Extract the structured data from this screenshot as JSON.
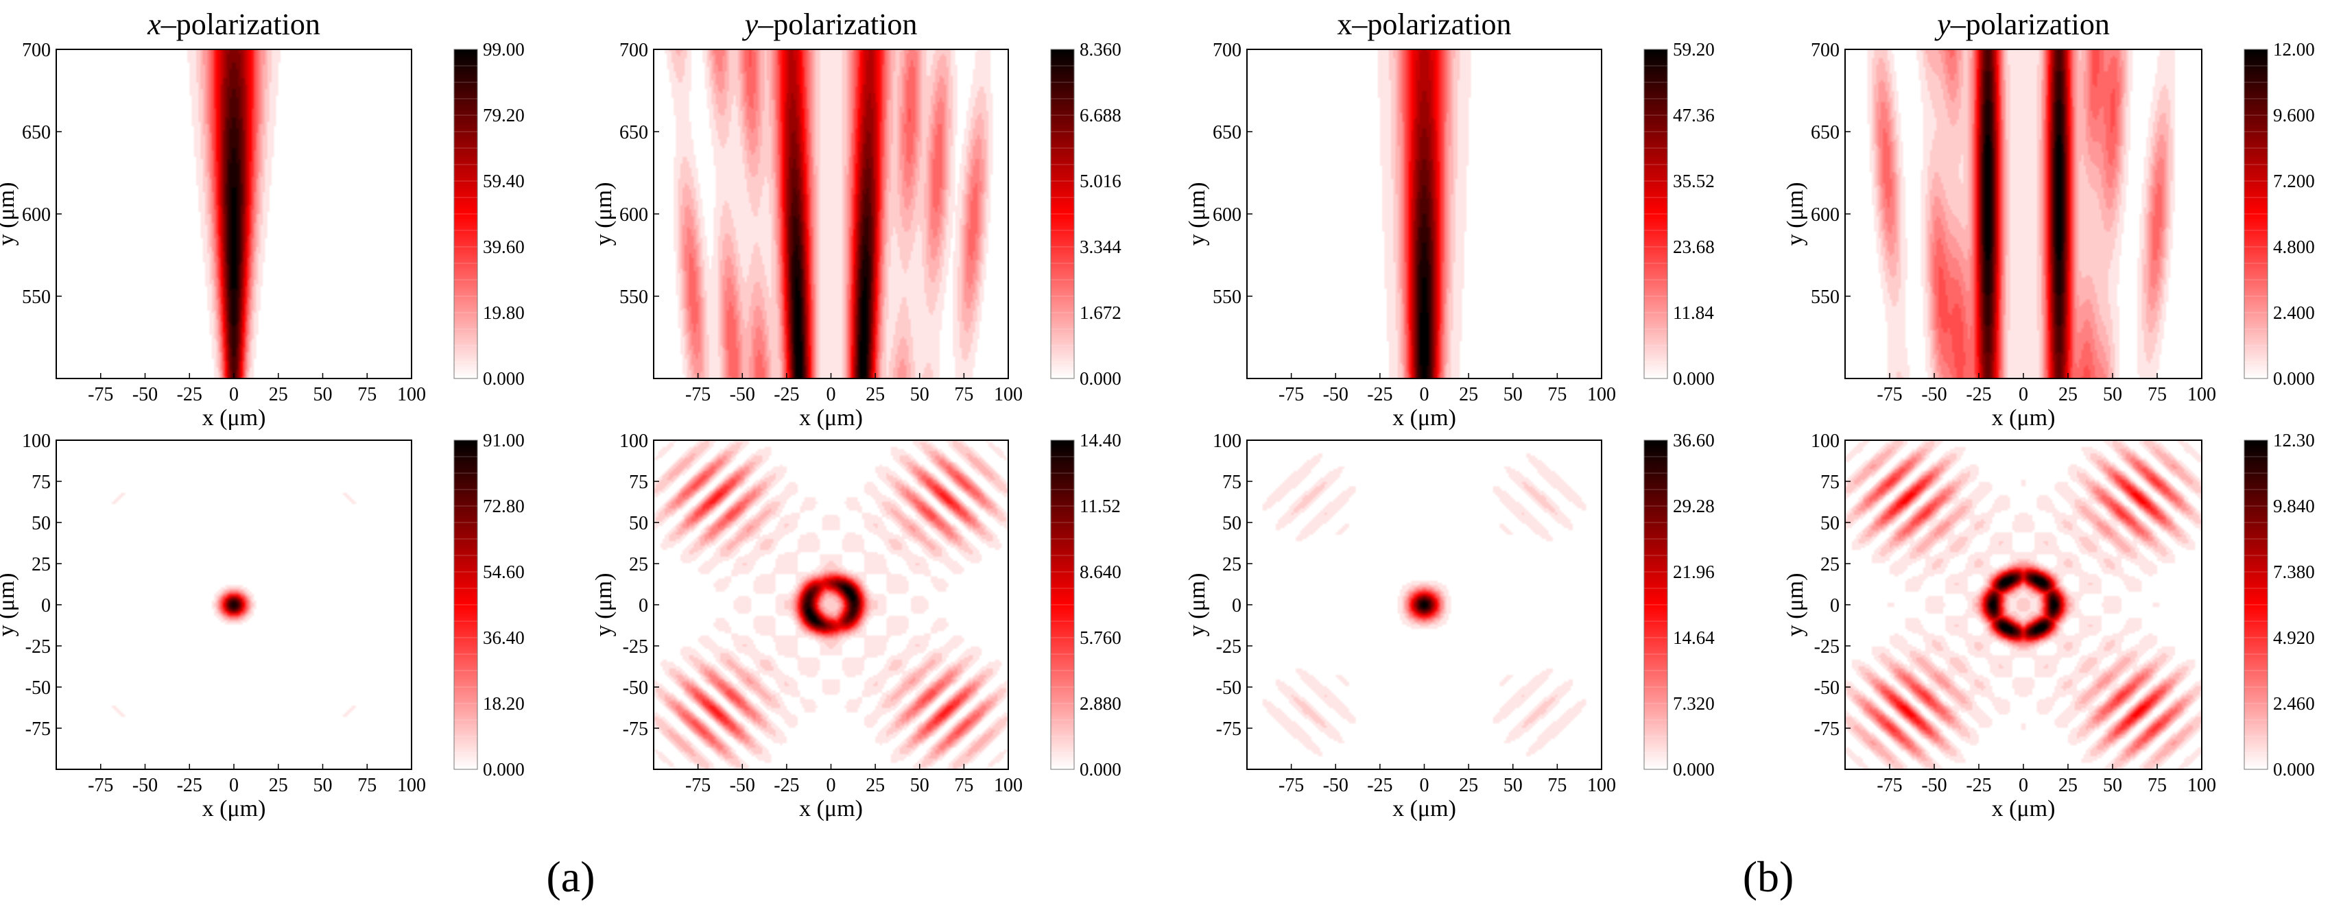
{
  "figure": {
    "panel_labels": [
      "(a)",
      "(b)"
    ]
  },
  "colormap": {
    "stops": [
      "#ffffff",
      "#ff0000",
      "#000000"
    ]
  },
  "chart_data": [
    {
      "id": "a-top-x",
      "type": "heatmap",
      "group": "(a)",
      "title_italic": "x",
      "title_rest": "–polarization",
      "xlabel": "x (μm)",
      "ylabel": "y (μm)",
      "xlim": [
        -100,
        100
      ],
      "ylim": [
        500,
        700
      ],
      "xticks": [
        "-75",
        "-50",
        "-25",
        "0",
        "25",
        "50",
        "75",
        "100"
      ],
      "yticks": [
        "550",
        "600",
        "650",
        "700"
      ],
      "colorbar": {
        "min": 0,
        "max": 99.0,
        "ticks": [
          "0.000",
          "19.80",
          "39.60",
          "59.40",
          "79.20",
          "99.00"
        ]
      },
      "field": {
        "kind": "beam",
        "centers": [
          0
        ],
        "sigma": 4,
        "sigmaTop": 10,
        "peakY": 585,
        "side": [],
        "halo": 0.03
      }
    },
    {
      "id": "a-top-y",
      "type": "heatmap",
      "group": "(a)",
      "title_italic": "y",
      "title_rest": "–polarization",
      "xlabel": "x (μm)",
      "ylabel": "y (μm)",
      "xlim": [
        -100,
        100
      ],
      "ylim": [
        500,
        700
      ],
      "xticks": [
        "-75",
        "-50",
        "-25",
        "0",
        "25",
        "50",
        "75",
        "100"
      ],
      "yticks": [
        "550",
        "600",
        "650",
        "700"
      ],
      "colorbar": {
        "min": 0,
        "max": 8.36,
        "ticks": [
          "0.000",
          "1.672",
          "3.344",
          "5.016",
          "6.688",
          "8.360"
        ]
      },
      "field": {
        "kind": "beam",
        "centers": [
          -18,
          18
        ],
        "sigma": 5,
        "sigmaTop": 7,
        "spread": 0.12,
        "peakY": 520,
        "side": [
          -75,
          -55,
          -40,
          40,
          55,
          75
        ],
        "halo": 0.05
      }
    },
    {
      "id": "b-top-x",
      "type": "heatmap",
      "group": "(b)",
      "title_italic": "",
      "title_rest": "x–polarization",
      "xlabel": "x (μm)",
      "ylabel": "y (μm)",
      "xlim": [
        -100,
        100
      ],
      "ylim": [
        500,
        700
      ],
      "xticks": [
        "-75",
        "-50",
        "-25",
        "0",
        "25",
        "50",
        "75",
        "100"
      ],
      "yticks": [
        "550",
        "600",
        "650",
        "700"
      ],
      "colorbar": {
        "min": 0,
        "max": 59.2,
        "ticks": [
          "0.000",
          "11.84",
          "23.68",
          "35.52",
          "47.36",
          "59.20"
        ]
      },
      "field": {
        "kind": "beam",
        "centers": [
          0
        ],
        "sigma": 6,
        "sigmaTop": 9,
        "peakY": 520,
        "side": [],
        "halo": 0.05
      }
    },
    {
      "id": "b-top-y",
      "type": "heatmap",
      "group": "(b)",
      "title_italic": "y",
      "title_rest": "–polarization",
      "xlabel": "x (μm)",
      "ylabel": "y (μm)",
      "xlim": [
        -100,
        100
      ],
      "ylim": [
        500,
        700
      ],
      "xticks": [
        "-75",
        "-50",
        "-25",
        "0",
        "25",
        "50",
        "75",
        "100"
      ],
      "yticks": [
        "550",
        "600",
        "650",
        "700"
      ],
      "colorbar": {
        "min": 0,
        "max": 12.0,
        "ticks": [
          "0.000",
          "2.400",
          "4.800",
          "7.200",
          "9.600",
          "12.00"
        ]
      },
      "field": {
        "kind": "beam",
        "centers": [
          -20,
          20
        ],
        "sigma": 5,
        "sigmaTop": 5,
        "spread": 0,
        "peakY": 610,
        "side": [
          -45,
          -35,
          35,
          45,
          -70,
          70
        ],
        "halo": 0.05
      }
    },
    {
      "id": "a-bot-x",
      "type": "heatmap",
      "group": "(a)",
      "xlabel": "x (μm)",
      "ylabel": "y (μm)",
      "xlim": [
        -100,
        100
      ],
      "ylim": [
        -100,
        100
      ],
      "xticks": [
        "-75",
        "-50",
        "-25",
        "0",
        "25",
        "50",
        "75",
        "100"
      ],
      "yticks": [
        "-75",
        "-50",
        "-25",
        "0",
        "25",
        "50",
        "75",
        "100"
      ],
      "colorbar": {
        "min": 0,
        "max": 91.0,
        "ticks": [
          "0.000",
          "18.20",
          "36.40",
          "54.60",
          "72.80",
          "91.00"
        ]
      },
      "field": {
        "kind": "spot",
        "radius": 5,
        "ring": 0,
        "lobes": 0,
        "diag": 0.05
      }
    },
    {
      "id": "a-bot-y",
      "type": "heatmap",
      "group": "(a)",
      "xlabel": "x (μm)",
      "ylabel": "y (μm)",
      "xlim": [
        -100,
        100
      ],
      "ylim": [
        -100,
        100
      ],
      "xticks": [
        "-75",
        "-50",
        "-25",
        "0",
        "25",
        "50",
        "75",
        "100"
      ],
      "yticks": [
        "-75",
        "-50",
        "-25",
        "0",
        "25",
        "50",
        "75",
        "100"
      ],
      "colorbar": {
        "min": 0,
        "max": 14.4,
        "ticks": [
          "0.000",
          "2.880",
          "5.760",
          "8.640",
          "11.52",
          "14.40"
        ]
      },
      "field": {
        "kind": "spot",
        "radius": 0,
        "ring": 13,
        "lobes": 2,
        "diag": 0.45
      }
    },
    {
      "id": "b-bot-x",
      "type": "heatmap",
      "group": "(b)",
      "xlabel": "x (μm)",
      "ylabel": "y (μm)",
      "xlim": [
        -100,
        100
      ],
      "ylim": [
        -100,
        100
      ],
      "xticks": [
        "-75",
        "-50",
        "-25",
        "0",
        "25",
        "50",
        "75",
        "100"
      ],
      "yticks": [
        "-75",
        "-50",
        "-25",
        "0",
        "25",
        "50",
        "75",
        "100"
      ],
      "colorbar": {
        "min": 0,
        "max": 36.6,
        "ticks": [
          "0.000",
          "7.320",
          "14.64",
          "21.96",
          "29.28",
          "36.60"
        ]
      },
      "field": {
        "kind": "spot",
        "radius": 6,
        "ring": 0,
        "lobes": 0,
        "diag": 0.12
      }
    },
    {
      "id": "b-bot-y",
      "type": "heatmap",
      "group": "(b)",
      "xlabel": "x (μm)",
      "ylabel": "y (μm)",
      "xlim": [
        -100,
        100
      ],
      "ylim": [
        -100,
        100
      ],
      "xticks": [
        "-75",
        "-50",
        "-25",
        "0",
        "25",
        "50",
        "75",
        "100"
      ],
      "yticks": [
        "-75",
        "-50",
        "-25",
        "0",
        "25",
        "50",
        "75",
        "100"
      ],
      "colorbar": {
        "min": 0,
        "max": 12.3,
        "ticks": [
          "0.000",
          "2.460",
          "4.920",
          "7.380",
          "9.840",
          "12.30"
        ]
      },
      "field": {
        "kind": "spot",
        "radius": 0,
        "ring": 17,
        "lobes": 6,
        "diag": 0.5
      }
    }
  ]
}
